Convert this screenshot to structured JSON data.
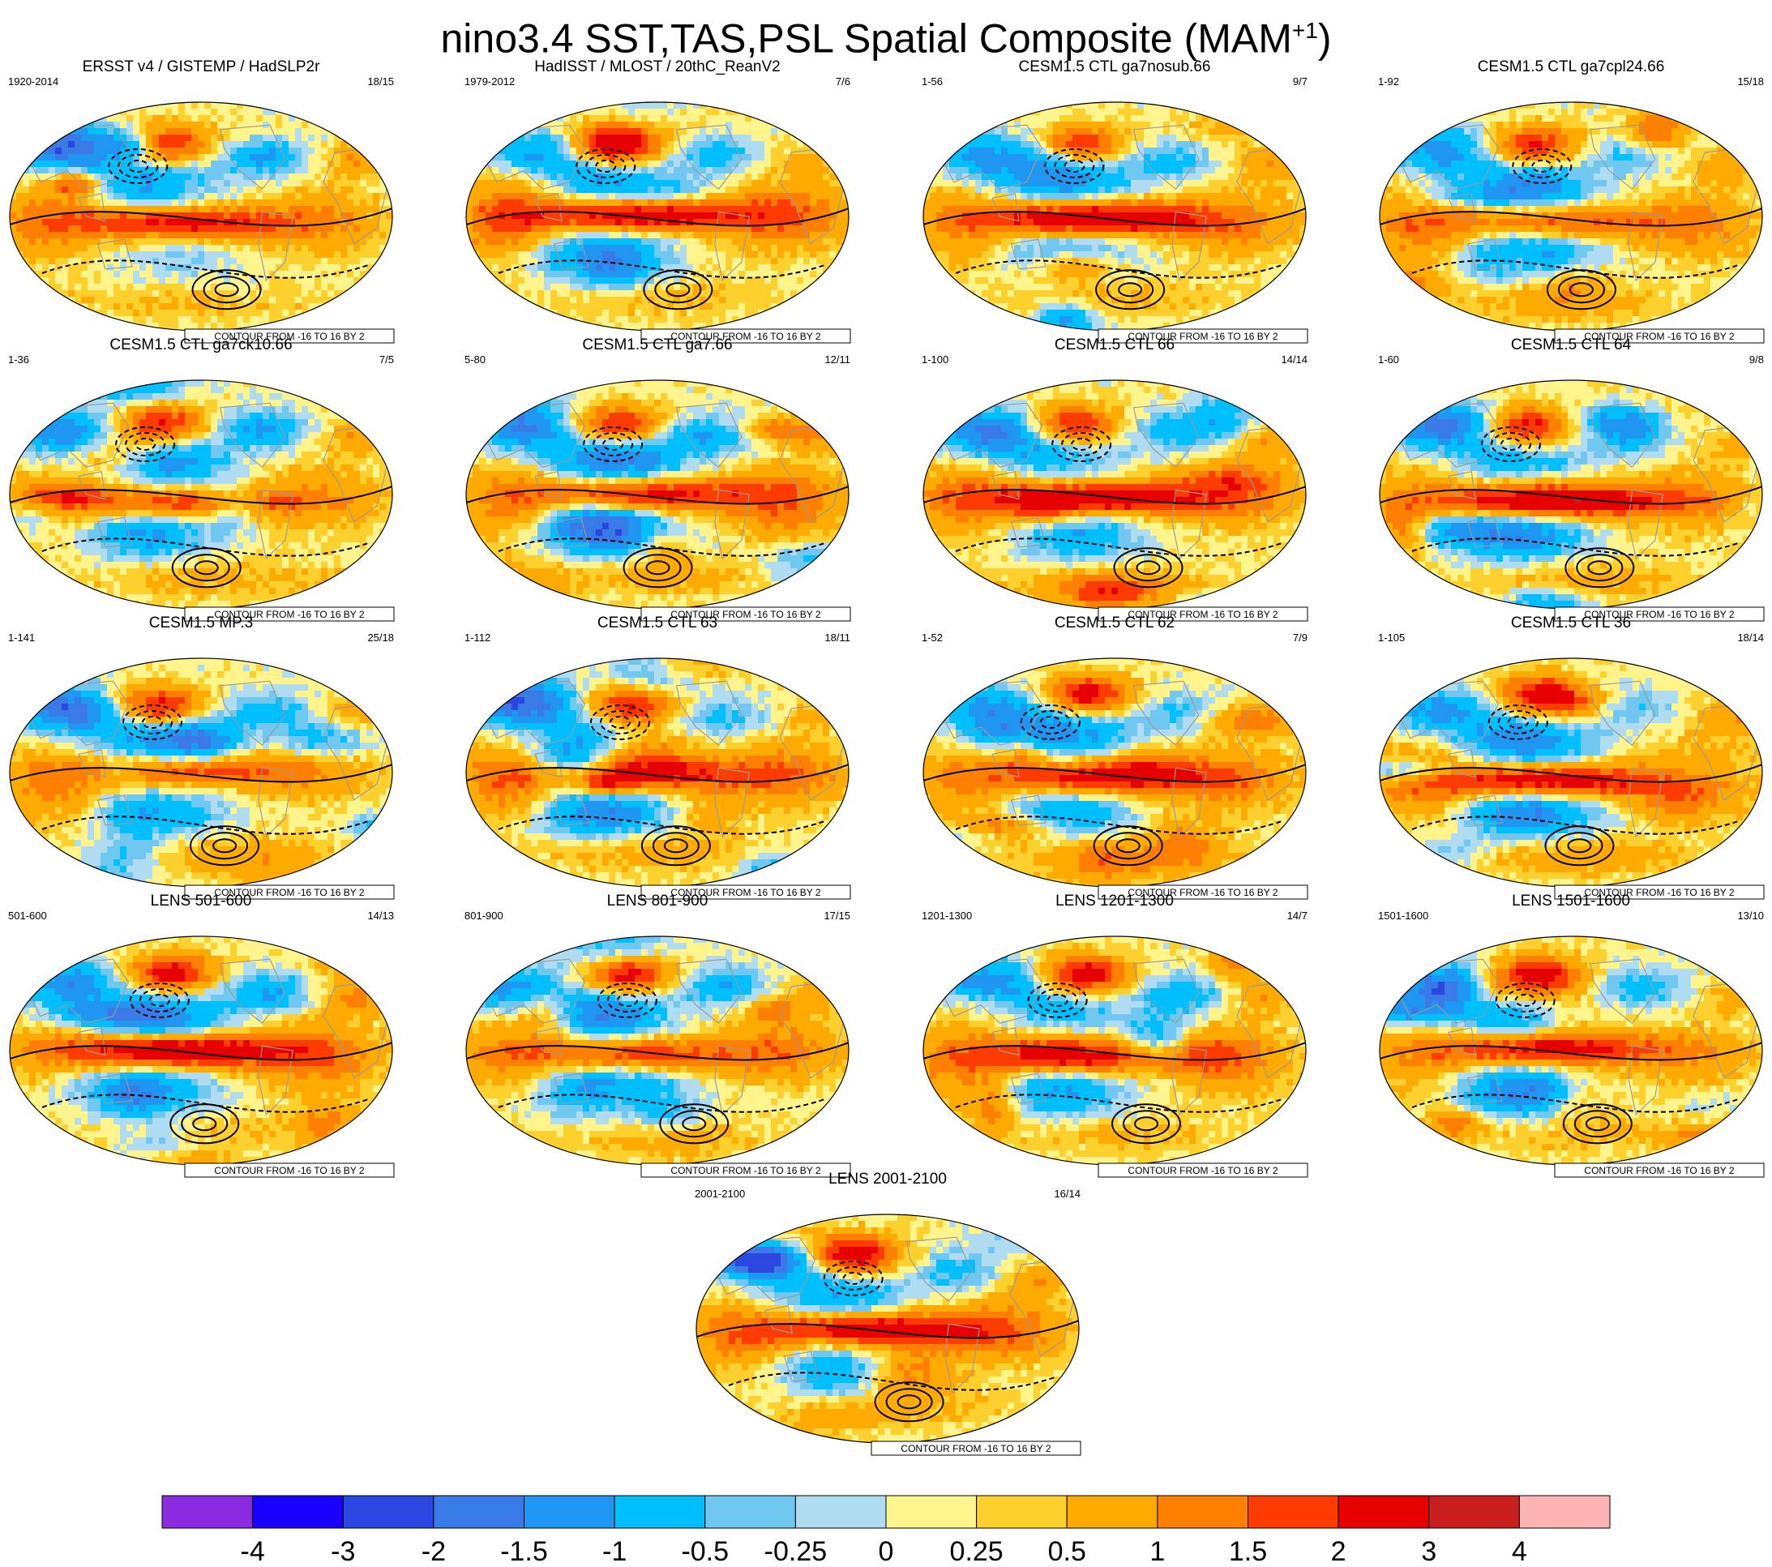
{
  "figure": {
    "title": "nino3.4 SST,TAS,PSL Spatial Composite (MAM",
    "title_superscript": "+1",
    "title_suffix": ")"
  },
  "contour_note": "CONTOUR FROM -16 TO 16 BY 2",
  "colors": {
    "land_outline": "#9a9a9a",
    "contour": "#000000",
    "missing_data": "#ffffff"
  },
  "chart_data": {
    "type": "heatmap",
    "description_variables": [
      "SST",
      "TAS",
      "PSL"
    ],
    "projection": "robinson",
    "panels": [
      {
        "title": "ERSST v4 / GISTEMP / HadSLP2r",
        "left": "1920-2014",
        "right": "18/15"
      },
      {
        "title": "HadISST / MLOST / 20thC_ReanV2",
        "left": "1979-2012",
        "right": "7/6"
      },
      {
        "title": "CESM1.5 CTL ga7nosub.66",
        "left": "1-56",
        "right": "9/7"
      },
      {
        "title": "CESM1.5 CTL ga7cpl24.66",
        "left": "1-92",
        "right": "15/18"
      },
      {
        "title": "CESM1.5 CTL ga7ck10.66",
        "left": "1-36",
        "right": "7/5"
      },
      {
        "title": "CESM1.5 CTL ga7.66",
        "left": "5-80",
        "right": "12/11"
      },
      {
        "title": "CESM1.5 CTL 66",
        "left": "1-100",
        "right": "14/14"
      },
      {
        "title": "CESM1.5 CTL 64",
        "left": "1-60",
        "right": "9/8"
      },
      {
        "title": "CESM1.5 MP.3",
        "left": "1-141",
        "right": "25/18"
      },
      {
        "title": "CESM1.5 CTL 63",
        "left": "1-112",
        "right": "18/11"
      },
      {
        "title": "CESM1.5 CTL 62",
        "left": "1-52",
        "right": "7/9"
      },
      {
        "title": "CESM1.5 CTL 36",
        "left": "1-105",
        "right": "18/14"
      },
      {
        "title": "LENS 501-600",
        "left": "501-600",
        "right": "14/13"
      },
      {
        "title": "LENS 801-900",
        "left": "801-900",
        "right": "17/15"
      },
      {
        "title": "LENS 1201-1300",
        "left": "1201-1300",
        "right": "14/7"
      },
      {
        "title": "LENS 1501-1600",
        "left": "1501-1600",
        "right": "13/10"
      },
      {
        "title": "LENS 2001-2100",
        "left": "2001-2100",
        "right": "16/14"
      }
    ],
    "colorbar": {
      "levels": [
        "-4",
        "-3",
        "-2",
        "-1.5",
        "-1",
        "-0.5",
        "-0.25",
        "0",
        "0.25",
        "0.5",
        "1",
        "1.5",
        "2",
        "3",
        "4"
      ],
      "colors": [
        "#8a2be2",
        "#1a00ff",
        "#2c46e0",
        "#3a7ae6",
        "#2096f3",
        "#00bfff",
        "#70c8f0",
        "#b0dcf2",
        "#fff38c",
        "#fdd02e",
        "#ffaa00",
        "#ff7f00",
        "#ff3c00",
        "#e60000",
        "#c81e1e",
        "#ffb4b4"
      ]
    },
    "contour": {
      "min": -16,
      "max": 16,
      "interval": 2,
      "negative_style": "dashed"
    }
  }
}
